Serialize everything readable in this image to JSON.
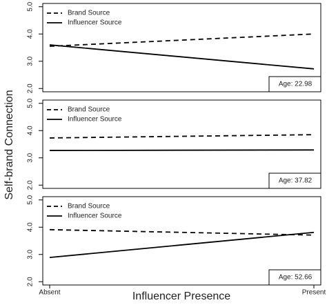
{
  "xlabel": "Influencer Presence",
  "ylabel": "Self-brand Connection",
  "categories": [
    "Absent",
    "Present"
  ],
  "chart_data": [
    {
      "type": "line",
      "annotation": "Age: 22.98",
      "ylim": [
        1.88,
        5.12
      ],
      "yticks": [
        {
          "value": 2,
          "label": "2.0"
        },
        {
          "value": 3,
          "label": "3.0"
        },
        {
          "value": 4,
          "label": "4.0"
        },
        {
          "value": 5,
          "label": "5.0"
        }
      ],
      "legend": "top-left",
      "series": [
        {
          "name": "Brand Source",
          "color": "#000000",
          "dash": "dashed",
          "values": [
            3.55,
            4.0
          ]
        },
        {
          "name": "Influencer Source",
          "color": "#000000",
          "dash": "solid",
          "values": [
            3.6,
            2.72
          ]
        }
      ]
    },
    {
      "type": "line",
      "annotation": "Age: 37.82",
      "ylim": [
        1.88,
        5.12
      ],
      "yticks": [
        {
          "value": 2,
          "label": "2.0"
        },
        {
          "value": 3,
          "label": "3.0"
        },
        {
          "value": 4,
          "label": "4.0"
        },
        {
          "value": 5,
          "label": "5.0"
        }
      ],
      "legend": "top-left",
      "series": [
        {
          "name": "Brand Source",
          "color": "#000000",
          "dash": "dashed",
          "values": [
            3.73,
            3.85
          ]
        },
        {
          "name": "Influencer Source",
          "color": "#000000",
          "dash": "solid",
          "values": [
            3.27,
            3.29
          ]
        }
      ]
    },
    {
      "type": "line",
      "annotation": "Age: 52.66",
      "ylim": [
        1.88,
        5.12
      ],
      "yticks": [
        {
          "value": 2,
          "label": "2.0"
        },
        {
          "value": 3,
          "label": "3.0"
        },
        {
          "value": 4,
          "label": "4.0"
        },
        {
          "value": 5,
          "label": "5.0"
        }
      ],
      "legend": "top-left",
      "series": [
        {
          "name": "Brand Source",
          "color": "#000000",
          "dash": "dashed",
          "values": [
            3.91,
            3.71
          ]
        },
        {
          "name": "Influencer Source",
          "color": "#000000",
          "dash": "solid",
          "values": [
            2.89,
            3.81
          ]
        }
      ]
    }
  ]
}
